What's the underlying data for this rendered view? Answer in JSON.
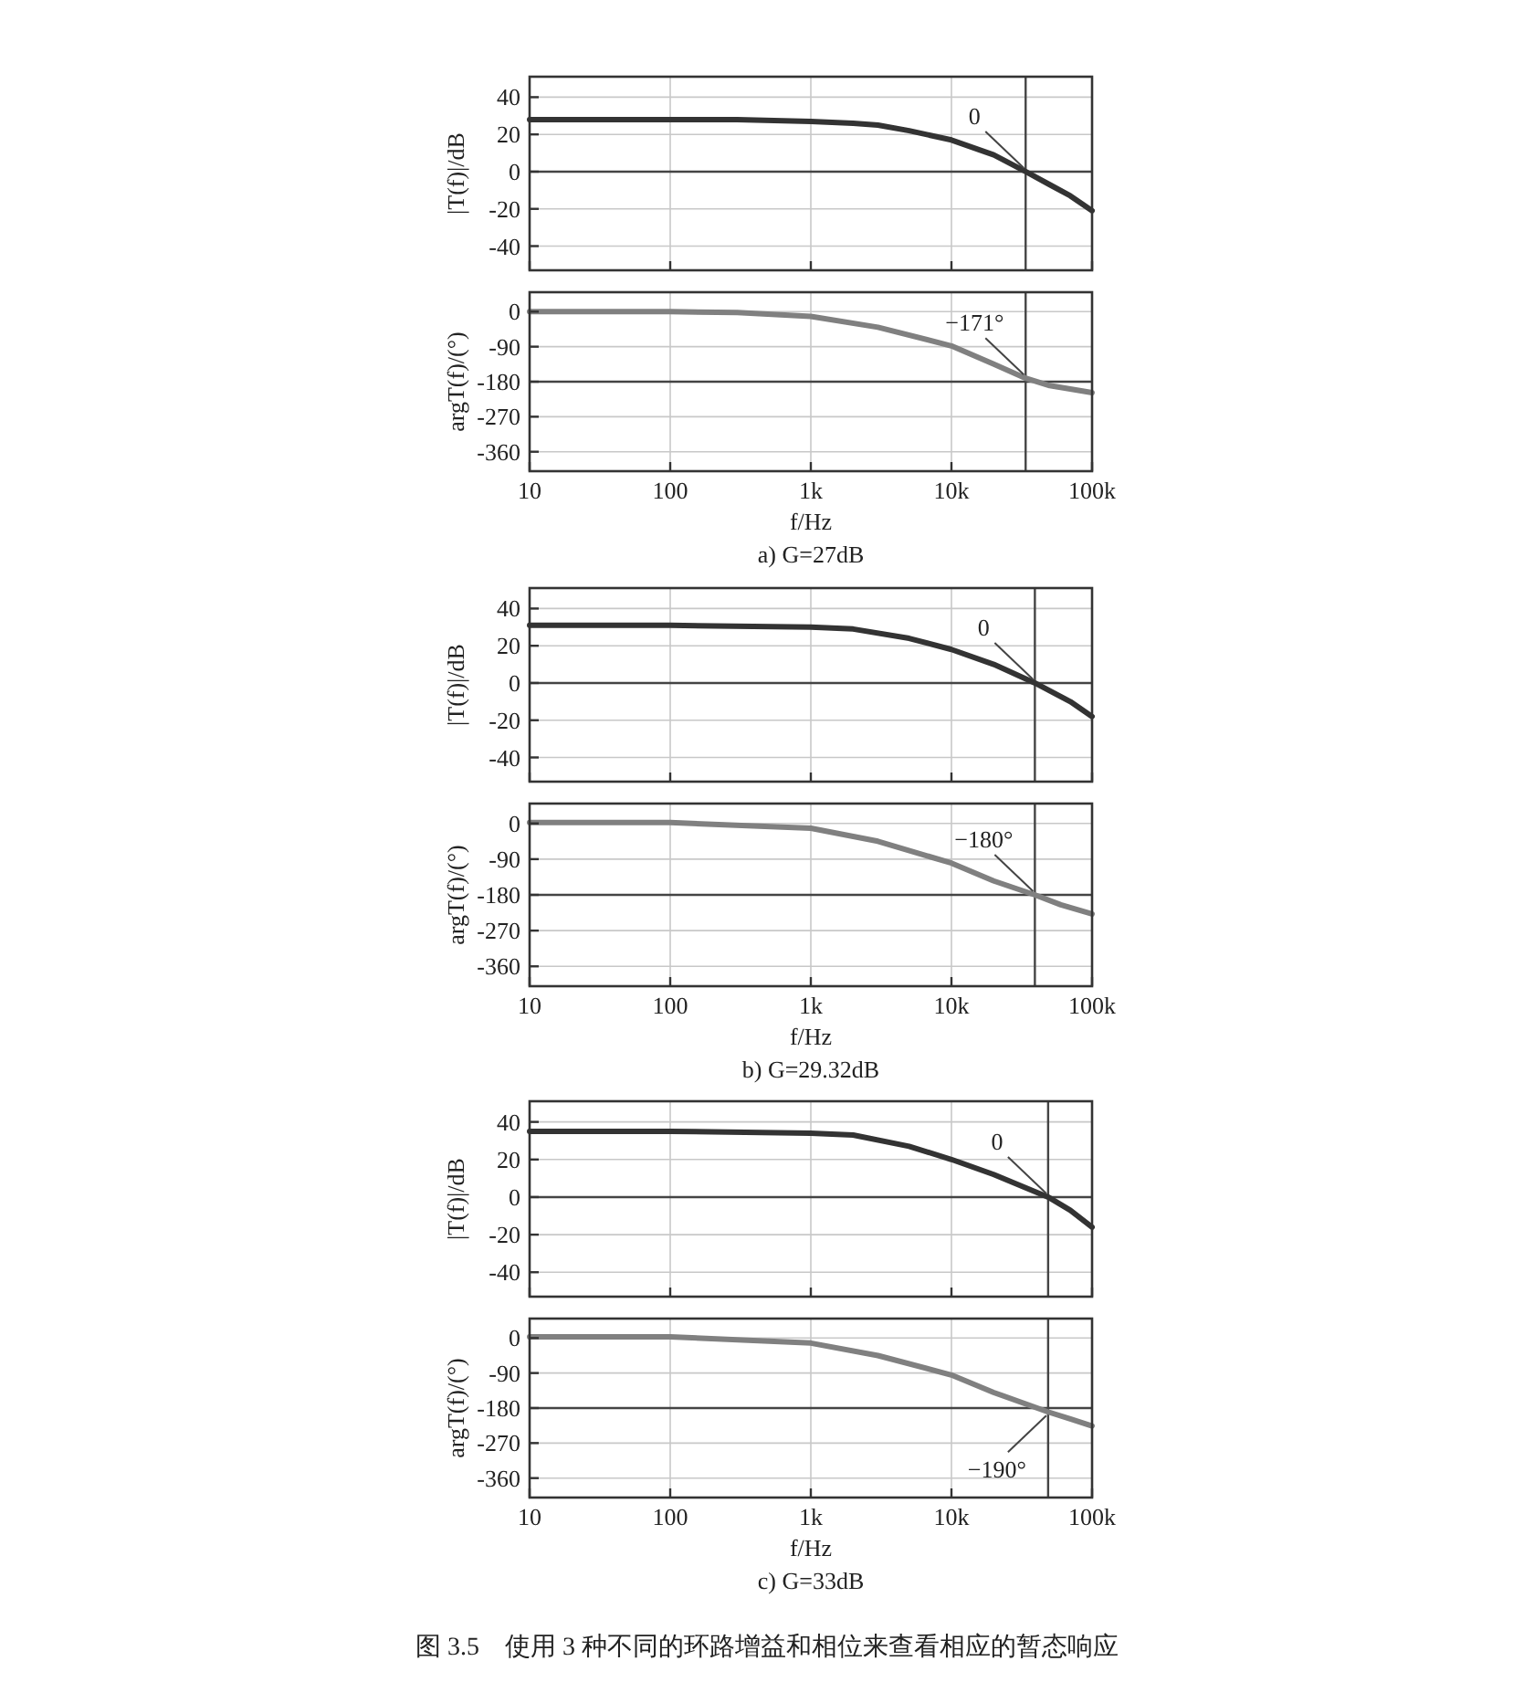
{
  "chart_data": [
    {
      "type": "line",
      "ylabel": "|T(f)|/dB",
      "xlim": [
        10,
        100000
      ],
      "ylim": [
        -53,
        51
      ],
      "log": "x",
      "tick_labels": "y",
      "grid": true,
      "marker": "none",
      "line_style": "solid",
      "xticks": [
        {
          "value": 10,
          "label": null
        },
        {
          "value": 100,
          "label": null
        },
        {
          "value": 1000,
          "label": null
        },
        {
          "value": 10000,
          "label": null
        },
        {
          "value": 100000,
          "label": null
        }
      ],
      "yticks": [
        -40,
        -20,
        0,
        20,
        40
      ],
      "series": [
        {
          "color": "#333333",
          "x": [
            10,
            100,
            300,
            1000,
            2000,
            3000,
            5000,
            10000,
            20000,
            33700,
            50000,
            70000,
            100000
          ],
          "values": [
            28,
            28,
            28,
            27,
            26,
            25,
            22,
            17,
            9,
            0,
            -7,
            -13,
            -21
          ]
        }
      ],
      "ref_lines": [
        {
          "axis": "y",
          "value": 0,
          "color": "#444444"
        },
        {
          "axis": "x",
          "value": 33700,
          "color": "#444444"
        }
      ],
      "annotations": [
        {
          "text": "0",
          "x": 33700,
          "y": 0
        }
      ]
    },
    {
      "type": "line",
      "ylabel": "argT(f)/(°)",
      "xlabel": "f/Hz",
      "xlim": [
        10,
        100000
      ],
      "ylim": [
        -410,
        50
      ],
      "log": "x",
      "grid": true,
      "marker": "none",
      "line_style": "solid",
      "xticks": [
        {
          "value": 10,
          "label": "10"
        },
        {
          "value": 100,
          "label": "100"
        },
        {
          "value": 1000,
          "label": "1k"
        },
        {
          "value": 10000,
          "label": "10k"
        },
        {
          "value": 100000,
          "label": "100k"
        }
      ],
      "yticks": [
        -360,
        -270,
        -180,
        -90,
        0
      ],
      "series": [
        {
          "color": "#808080",
          "x": [
            10,
            100,
            300,
            1000,
            3000,
            10000,
            20000,
            33700,
            50000,
            100000
          ],
          "values": [
            0,
            0,
            -2,
            -12,
            -40,
            -88,
            -135,
            -171,
            -190,
            -208
          ]
        }
      ],
      "ref_lines": [
        {
          "axis": "y",
          "value": -180,
          "color": "#444444"
        },
        {
          "axis": "x",
          "value": 33700,
          "color": "#444444"
        }
      ],
      "annotations": [
        {
          "text": "−171°",
          "x": 33700,
          "y": -171
        },
        "a) G=27dB"
      ]
    },
    {
      "type": "line",
      "ylabel": "|T(f)|/dB",
      "xlim": [
        10,
        100000
      ],
      "ylim": [
        -53,
        51
      ],
      "log": "x",
      "tick_labels": "y",
      "grid": true,
      "marker": "none",
      "line_style": "solid",
      "xticks": [
        {
          "value": 10,
          "label": null
        },
        {
          "value": 100,
          "label": null
        },
        {
          "value": 1000,
          "label": null
        },
        {
          "value": 10000,
          "label": null
        },
        {
          "value": 100000,
          "label": null
        }
      ],
      "yticks": [
        -40,
        -20,
        0,
        20,
        40
      ],
      "series": [
        {
          "color": "#333333",
          "x": [
            10,
            100,
            1000,
            2000,
            5000,
            10000,
            20000,
            39200,
            70000,
            100000
          ],
          "values": [
            31,
            31,
            30,
            29,
            24,
            18,
            10,
            0,
            -10,
            -18
          ]
        }
      ],
      "ref_lines": [
        {
          "axis": "y",
          "value": 0,
          "color": "#444444"
        },
        {
          "axis": "x",
          "value": 39200,
          "color": "#444444"
        }
      ],
      "annotations": [
        {
          "text": "0",
          "x": 39200,
          "y": 0
        }
      ]
    },
    {
      "type": "line",
      "ylabel": "argT(f)/(°)",
      "xlabel": "f/Hz",
      "xlim": [
        10,
        100000
      ],
      "ylim": [
        -410,
        50
      ],
      "log": "x",
      "grid": true,
      "marker": "none",
      "line_style": "solid",
      "xticks": [
        {
          "value": 10,
          "label": "10"
        },
        {
          "value": 100,
          "label": "100"
        },
        {
          "value": 1000,
          "label": "1k"
        },
        {
          "value": 10000,
          "label": "10k"
        },
        {
          "value": 100000,
          "label": "100k"
        }
      ],
      "yticks": [
        -360,
        -270,
        -180,
        -90,
        0
      ],
      "series": [
        {
          "color": "#808080",
          "x": [
            10,
            100,
            1000,
            3000,
            10000,
            20000,
            39200,
            60000,
            100000
          ],
          "values": [
            2,
            2,
            -12,
            -45,
            -100,
            -145,
            -180,
            -205,
            -228
          ]
        }
      ],
      "ref_lines": [
        {
          "axis": "y",
          "value": -180,
          "color": "#444444"
        },
        {
          "axis": "x",
          "value": 39200,
          "color": "#444444"
        }
      ],
      "annotations": [
        {
          "text": "−180°",
          "x": 39200,
          "y": -180
        },
        "b) G=29.32dB"
      ]
    },
    {
      "type": "line",
      "ylabel": "|T(f)|/dB",
      "xlim": [
        10,
        100000
      ],
      "ylim": [
        -53,
        51
      ],
      "log": "x",
      "tick_labels": "y",
      "grid": true,
      "marker": "none",
      "line_style": "solid",
      "xticks": [
        {
          "value": 10,
          "label": null
        },
        {
          "value": 100,
          "label": null
        },
        {
          "value": 1000,
          "label": null
        },
        {
          "value": 10000,
          "label": null
        },
        {
          "value": 100000,
          "label": null
        }
      ],
      "yticks": [
        -40,
        -20,
        0,
        20,
        40
      ],
      "series": [
        {
          "color": "#333333",
          "x": [
            10,
            100,
            1000,
            2000,
            5000,
            10000,
            20000,
            48700,
            70000,
            100000
          ],
          "values": [
            35,
            35,
            34,
            33,
            27,
            20,
            12,
            0,
            -7,
            -16
          ]
        }
      ],
      "ref_lines": [
        {
          "axis": "y",
          "value": 0,
          "color": "#444444"
        },
        {
          "axis": "x",
          "value": 48700,
          "color": "#444444"
        }
      ],
      "annotations": [
        {
          "text": "0",
          "x": 48700,
          "y": 0
        }
      ]
    },
    {
      "type": "line",
      "ylabel": "argT(f)/(°)",
      "xlabel": "f/Hz",
      "xlim": [
        10,
        100000
      ],
      "ylim": [
        -410,
        50
      ],
      "log": "x",
      "grid": true,
      "marker": "none",
      "line_style": "solid",
      "xticks": [
        {
          "value": 10,
          "label": "10"
        },
        {
          "value": 100,
          "label": "100"
        },
        {
          "value": 1000,
          "label": "1k"
        },
        {
          "value": 10000,
          "label": "10k"
        },
        {
          "value": 100000,
          "label": "100k"
        }
      ],
      "yticks": [
        -360,
        -270,
        -180,
        -90,
        0
      ],
      "series": [
        {
          "color": "#808080",
          "x": [
            10,
            100,
            1000,
            3000,
            10000,
            20000,
            48700,
            70000,
            100000
          ],
          "values": [
            3,
            3,
            -13,
            -45,
            -95,
            -140,
            -190,
            -208,
            -226
          ]
        }
      ],
      "ref_lines": [
        {
          "axis": "y",
          "value": -180,
          "color": "#444444"
        },
        {
          "axis": "x",
          "value": 48700,
          "color": "#444444"
        }
      ],
      "annotations": [
        {
          "text": "−190°",
          "x": 48700,
          "y": -190
        },
        "c) G=33dB",
        "图 3.5　使用 3 种不同的环路增益和相位来查看相应的暂态响应"
      ]
    }
  ]
}
